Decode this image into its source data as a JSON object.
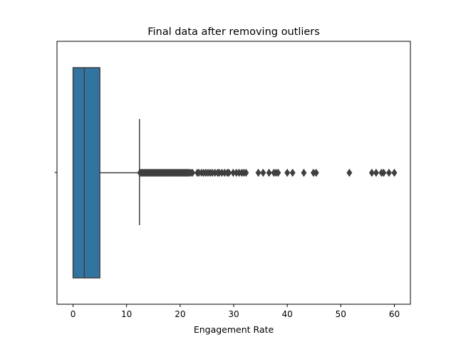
{
  "chart_data": {
    "type": "box",
    "title": "Final data after removing outliers",
    "xlabel": "Engagement Rate",
    "ylabel": "",
    "xlim": [
      -3,
      63
    ],
    "xticks": [
      0,
      10,
      20,
      30,
      40,
      50,
      60
    ],
    "grid": false,
    "box_color": "#3274a1",
    "line_color": "#3f3f3f",
    "box": {
      "min": 0,
      "q1": 0,
      "median": 2.1,
      "q3": 5,
      "whisker_high": 12.4
    },
    "outliers": [
      12.5,
      12.7,
      12.9,
      13.1,
      13.3,
      13.5,
      13.7,
      13.9,
      14.1,
      14.3,
      14.5,
      14.7,
      14.9,
      15.1,
      15.3,
      15.5,
      15.7,
      15.9,
      16.1,
      16.3,
      16.5,
      16.7,
      16.9,
      17.1,
      17.3,
      17.5,
      17.7,
      17.9,
      18.1,
      18.3,
      18.5,
      18.7,
      18.9,
      19.1,
      19.3,
      19.5,
      19.7,
      19.9,
      20.1,
      20.3,
      20.5,
      20.7,
      20.9,
      21.1,
      21.3,
      21.5,
      21.7,
      22.0,
      22.3,
      23.2,
      23.5,
      24.0,
      24.4,
      24.8,
      25.2,
      25.6,
      26.0,
      26.5,
      27.0,
      27.3,
      27.8,
      28.3,
      28.8,
      29.1,
      29.9,
      30.5,
      31.0,
      31.5,
      31.9,
      32.3,
      34.6,
      35.5,
      36.6,
      37.5,
      37.9,
      38.3,
      40.0,
      41.0,
      43.1,
      44.9,
      45.4,
      51.6,
      55.8,
      56.6,
      57.6,
      58.0,
      59.0,
      60.0
    ]
  }
}
